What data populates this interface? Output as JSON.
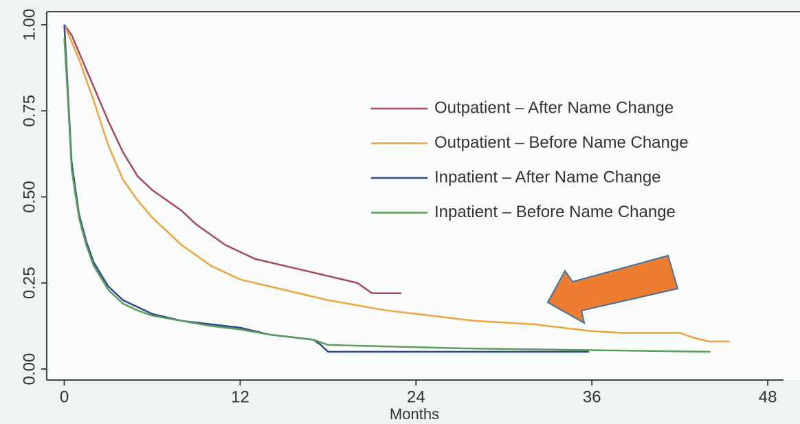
{
  "chart_data": {
    "type": "line",
    "xlabel": "Months",
    "xlim": [
      -1.2,
      50.2
    ],
    "ylim": [
      -0.032,
      1.038
    ],
    "xticks": [
      0,
      12,
      24,
      36,
      48
    ],
    "yticks": [
      {
        "value": 0,
        "label": "0.00"
      },
      {
        "value": 0.25,
        "label": "0.25"
      },
      {
        "value": 0.5,
        "label": "0.50"
      },
      {
        "value": 0.75,
        "label": "0.75"
      },
      {
        "value": 1,
        "label": "1.00"
      }
    ],
    "grid": false,
    "legend": "upper right",
    "series": [
      {
        "name": "Outpatient – After Name Change",
        "color": "#a8485a",
        "x": [
          0,
          0.5,
          1,
          2,
          3,
          4,
          5,
          6,
          7,
          8,
          9,
          10,
          11,
          12,
          13,
          14,
          15,
          16,
          17,
          18,
          19,
          20,
          21,
          22,
          23
        ],
        "values": [
          1.0,
          0.97,
          0.92,
          0.82,
          0.72,
          0.63,
          0.56,
          0.52,
          0.49,
          0.46,
          0.42,
          0.39,
          0.36,
          0.34,
          0.32,
          0.31,
          0.3,
          0.29,
          0.28,
          0.27,
          0.26,
          0.25,
          0.22,
          0.22,
          0.22
        ]
      },
      {
        "name": "Outpatient – Before Name Change",
        "color": "#f0a23c",
        "x": [
          0,
          1,
          2,
          3,
          4,
          5,
          6,
          7,
          8,
          9,
          10,
          11,
          12,
          14,
          16,
          18,
          20,
          22,
          24,
          26,
          28,
          30,
          32,
          34,
          36,
          38,
          40,
          42,
          43,
          44,
          45.4
        ],
        "values": [
          1.0,
          0.9,
          0.78,
          0.65,
          0.55,
          0.49,
          0.44,
          0.4,
          0.36,
          0.33,
          0.3,
          0.28,
          0.26,
          0.24,
          0.22,
          0.2,
          0.185,
          0.17,
          0.16,
          0.15,
          0.14,
          0.135,
          0.13,
          0.12,
          0.11,
          0.105,
          0.105,
          0.105,
          0.09,
          0.08,
          0.08
        ]
      },
      {
        "name": "Inpatient – After Name Change",
        "color": "#2b4b8c",
        "x": [
          0,
          0.25,
          0.5,
          1,
          1.5,
          2,
          3,
          4,
          5,
          6,
          8,
          10,
          12,
          14,
          16,
          17,
          17.5,
          18,
          35.8
        ],
        "values": [
          1.0,
          0.8,
          0.6,
          0.45,
          0.37,
          0.31,
          0.24,
          0.2,
          0.18,
          0.16,
          0.14,
          0.13,
          0.12,
          0.1,
          0.09,
          0.085,
          0.07,
          0.05,
          0.05
        ]
      },
      {
        "name": "Inpatient – Before Name Change",
        "color": "#5c9c5c",
        "x": [
          0,
          0.25,
          0.5,
          1,
          1.5,
          2,
          3,
          4,
          5,
          6,
          8,
          10,
          12,
          14,
          16,
          17,
          18,
          27,
          44.1
        ],
        "values": [
          0.96,
          0.78,
          0.58,
          0.44,
          0.36,
          0.3,
          0.23,
          0.19,
          0.17,
          0.155,
          0.14,
          0.125,
          0.115,
          0.1,
          0.09,
          0.085,
          0.07,
          0.06,
          0.05
        ]
      }
    ]
  }
}
